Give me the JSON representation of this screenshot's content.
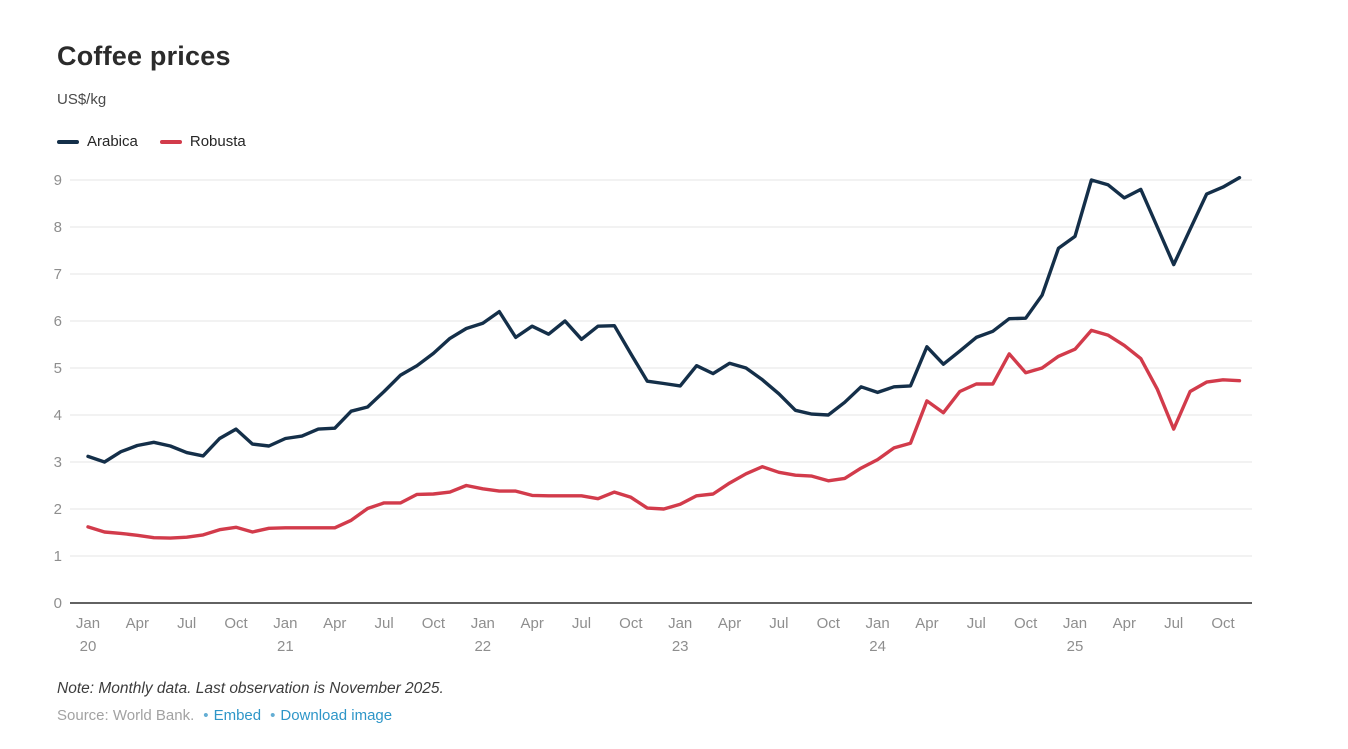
{
  "header": {
    "title": "Coffee prices",
    "subtitle": "US$/kg"
  },
  "legend": {
    "items": [
      {
        "label": "Arabica",
        "color": "#142f49"
      },
      {
        "label": "Robusta",
        "color": "#d23b4b"
      }
    ]
  },
  "footer": {
    "note": "Note: Monthly data. Last observation is November 2025.",
    "source_prefix": "Source: World Bank.",
    "bullet": "•",
    "links": [
      "Embed",
      "Download image"
    ],
    "link_color": "#2e96c8",
    "bullet_color": "#64aed4"
  },
  "chart_data": {
    "type": "line",
    "title": "Coffee prices",
    "ylabel": "US$/kg",
    "x_range": {
      "start": "Jan 2020",
      "end": "Nov 2025",
      "points": 71,
      "frequency": "monthly"
    },
    "ylim": [
      0,
      9
    ],
    "y_ticks": [
      0,
      1,
      2,
      3,
      4,
      5,
      6,
      7,
      8,
      9
    ],
    "grid": "horizontal",
    "grid_color": "#e4e4e4",
    "axis_color": "#2f2f2f",
    "tick_label_color": "#8e8e8e",
    "legend_position": "top-left",
    "x_ticks": [
      {
        "i": 0,
        "label": "Jan",
        "year": "20"
      },
      {
        "i": 3,
        "label": "Apr"
      },
      {
        "i": 6,
        "label": "Jul"
      },
      {
        "i": 9,
        "label": "Oct"
      },
      {
        "i": 12,
        "label": "Jan",
        "year": "21"
      },
      {
        "i": 15,
        "label": "Apr"
      },
      {
        "i": 18,
        "label": "Jul"
      },
      {
        "i": 21,
        "label": "Oct"
      },
      {
        "i": 24,
        "label": "Jan",
        "year": "22"
      },
      {
        "i": 27,
        "label": "Apr"
      },
      {
        "i": 30,
        "label": "Jul"
      },
      {
        "i": 33,
        "label": "Oct"
      },
      {
        "i": 36,
        "label": "Jan",
        "year": "23"
      },
      {
        "i": 39,
        "label": "Apr"
      },
      {
        "i": 42,
        "label": "Jul"
      },
      {
        "i": 45,
        "label": "Oct"
      },
      {
        "i": 48,
        "label": "Jan",
        "year": "24"
      },
      {
        "i": 51,
        "label": "Apr"
      },
      {
        "i": 54,
        "label": "Jul"
      },
      {
        "i": 57,
        "label": "Oct"
      },
      {
        "i": 60,
        "label": "Jan",
        "year": "25"
      },
      {
        "i": 63,
        "label": "Apr"
      },
      {
        "i": 66,
        "label": "Jul"
      },
      {
        "i": 69,
        "label": "Oct"
      }
    ],
    "series": [
      {
        "name": "Arabica",
        "color": "#142f49",
        "values": [
          3.12,
          3.0,
          3.22,
          3.35,
          3.42,
          3.34,
          3.2,
          3.13,
          3.5,
          3.7,
          3.38,
          3.34,
          3.5,
          3.55,
          3.7,
          3.72,
          4.08,
          4.17,
          4.5,
          4.85,
          5.05,
          5.31,
          5.63,
          5.84,
          5.95,
          6.2,
          5.65,
          5.89,
          5.72,
          6.0,
          5.61,
          5.89,
          5.9,
          5.3,
          4.72,
          4.67,
          4.62,
          5.05,
          4.88,
          5.1,
          5.0,
          4.75,
          4.45,
          4.1,
          4.02,
          4.0,
          4.27,
          4.6,
          4.48,
          4.6,
          4.62,
          5.45,
          5.08,
          5.36,
          5.65,
          5.78,
          6.05,
          6.06,
          6.55,
          7.55,
          7.8,
          9.0,
          8.9,
          8.62,
          8.8,
          8.0,
          7.2,
          7.95,
          8.7,
          8.85,
          9.05
        ]
      },
      {
        "name": "Robusta",
        "color": "#d23b4b",
        "values": [
          1.62,
          1.51,
          1.48,
          1.44,
          1.39,
          1.38,
          1.4,
          1.45,
          1.56,
          1.61,
          1.51,
          1.59,
          1.6,
          1.6,
          1.6,
          1.6,
          1.76,
          2.01,
          2.13,
          2.13,
          2.31,
          2.32,
          2.36,
          2.5,
          2.43,
          2.38,
          2.38,
          2.29,
          2.28,
          2.28,
          2.28,
          2.22,
          2.36,
          2.25,
          2.02,
          2.0,
          2.1,
          2.28,
          2.32,
          2.55,
          2.75,
          2.9,
          2.78,
          2.72,
          2.7,
          2.6,
          2.65,
          2.87,
          3.05,
          3.3,
          3.4,
          4.3,
          4.05,
          4.5,
          4.66,
          4.66,
          5.3,
          4.9,
          5.0,
          5.25,
          5.4,
          5.8,
          5.7,
          5.48,
          5.2,
          4.55,
          3.7,
          4.5,
          4.7,
          4.75,
          4.73
        ]
      }
    ]
  }
}
